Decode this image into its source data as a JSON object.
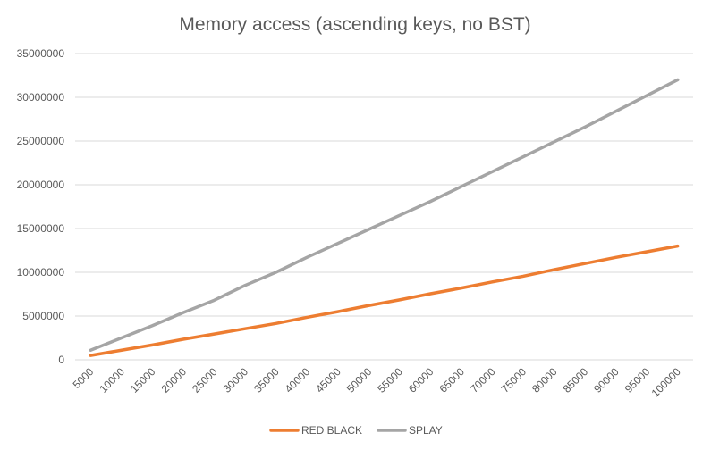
{
  "chart_data": {
    "type": "line",
    "title": "Memory access (ascending keys, no BST)",
    "xlabel": "",
    "ylabel": "",
    "ylim": [
      0,
      35000000
    ],
    "yticks": [
      "0",
      "5000000",
      "10000000",
      "15000000",
      "20000000",
      "25000000",
      "30000000",
      "35000000"
    ],
    "grid": true,
    "legend_position": "bottom",
    "categories": [
      "5000",
      "10000",
      "15000",
      "20000",
      "25000",
      "30000",
      "35000",
      "40000",
      "45000",
      "50000",
      "55000",
      "60000",
      "65000",
      "70000",
      "75000",
      "80000",
      "85000",
      "90000",
      "95000",
      "100000"
    ],
    "series": [
      {
        "name": "RED BLACK",
        "color": "#ed7d31",
        "values": [
          500000,
          1100000,
          1700000,
          2350000,
          2950000,
          3550000,
          4150000,
          4850000,
          5500000,
          6200000,
          6850000,
          7550000,
          8200000,
          8900000,
          9550000,
          10300000,
          11000000,
          11700000,
          12350000,
          13000000
        ]
      },
      {
        "name": "SPLAY",
        "color": "#a5a5a5",
        "values": [
          1100000,
          2500000,
          3900000,
          5400000,
          6800000,
          8500000,
          10000000,
          11700000,
          13300000,
          14900000,
          16500000,
          18100000,
          19800000,
          21500000,
          23200000,
          24900000,
          26600000,
          28400000,
          30200000,
          32000000
        ]
      }
    ]
  }
}
